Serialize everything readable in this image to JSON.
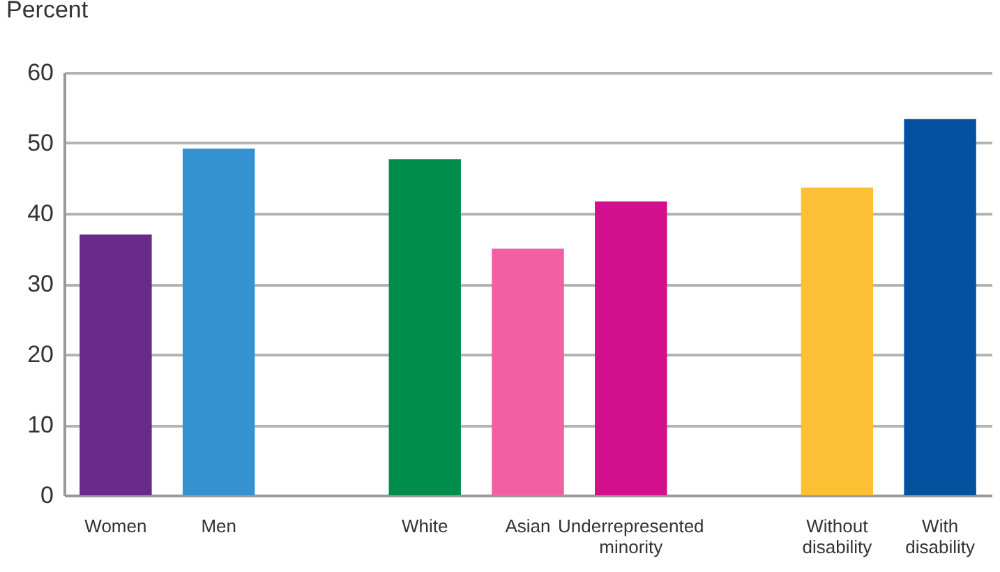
{
  "chart_data": {
    "type": "bar",
    "ylabel": "Percent",
    "categories": [
      "Women",
      "Men",
      null,
      "White",
      "Asian",
      "Underrepresented minority",
      null,
      "Without disability",
      "With disability"
    ],
    "values": [
      37.0,
      49.2,
      null,
      47.7,
      35.0,
      41.7,
      null,
      43.7,
      53.4
    ],
    "colors": [
      "#692a8a",
      "#3492d1",
      "#ffffff",
      "#008c4a",
      "#f060a2",
      "#d20f8c",
      "#ffffff",
      "#fdbf35",
      "#0451a0"
    ],
    "ylim": [
      0,
      60
    ],
    "yticks": [
      0,
      10,
      20,
      30,
      40,
      50,
      60
    ],
    "grid": "y"
  }
}
